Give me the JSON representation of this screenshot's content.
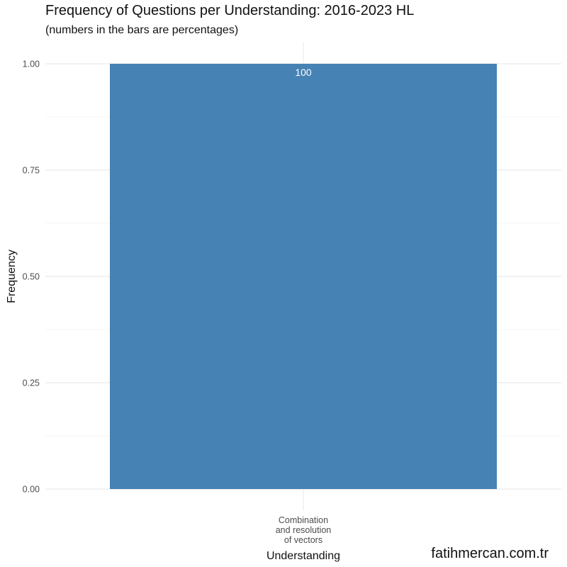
{
  "chart_data": {
    "type": "bar",
    "title": "Frequency of Questions per Understanding: 2016-2023 HL",
    "subtitle": "(numbers in the bars are percentages)",
    "xlabel": "Understanding",
    "ylabel": "Frequency",
    "categories": [
      "Combination\nand resolution\nof vectors"
    ],
    "values": [
      1.0
    ],
    "data_labels": [
      "100"
    ],
    "ylim": [
      0,
      1
    ],
    "yticks": [
      0.0,
      0.25,
      0.5,
      0.75,
      1.0
    ],
    "ytick_labels": [
      "0.00",
      "0.25",
      "0.50",
      "0.75",
      "1.00"
    ],
    "grid": true,
    "bar_color": "#4682b4",
    "grid_color": "#ebebeb"
  },
  "watermark": "fatihmercan.com.tr"
}
